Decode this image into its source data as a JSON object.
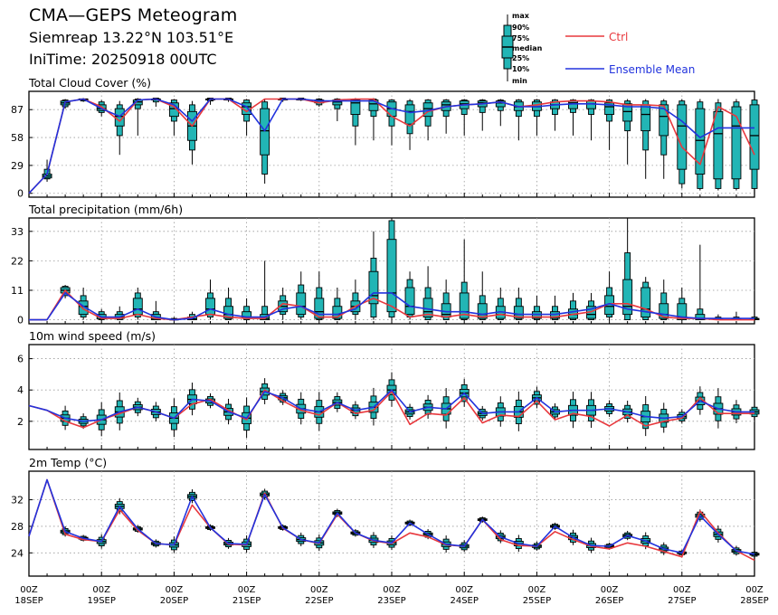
{
  "header": {
    "title": "CMA—GEPS Meteogram",
    "location": "Siemreap 13.22°N 103.51°E",
    "init_time": "IniTime: 20250918 00UTC"
  },
  "legend": {
    "box_labels": [
      "max",
      "90%",
      "75%",
      "median",
      "25%",
      "10%",
      "min"
    ],
    "ctrl_label": "Ctrl",
    "mean_label": "Ensemble Mean",
    "colors": {
      "ctrl": "#e8383d",
      "mean": "#2233dd",
      "box": "#22b5b5"
    }
  },
  "chart_data": [
    {
      "type": "box",
      "title": "Total Cloud Cover (%)",
      "ylim": [
        -4,
        106
      ],
      "yticks": [
        0,
        29,
        58,
        87
      ],
      "x": [
        0,
        1,
        2,
        3,
        4,
        5,
        6,
        7,
        8,
        9,
        10,
        11,
        12,
        13,
        14,
        15,
        16,
        17,
        18,
        19,
        20,
        21,
        22,
        23,
        24,
        25,
        26,
        27,
        28,
        29,
        30,
        31,
        32,
        33,
        34,
        35,
        36,
        37,
        38,
        39,
        40
      ],
      "ctrl": [
        0,
        20,
        95,
        98,
        90,
        75,
        97,
        98,
        90,
        70,
        98,
        98,
        85,
        98,
        98,
        98,
        94,
        97,
        98,
        98,
        80,
        70,
        85,
        90,
        92,
        93,
        95,
        90,
        92,
        95,
        96,
        96,
        95,
        92,
        92,
        91,
        48,
        30,
        90,
        80,
        40
      ],
      "mean": [
        0,
        20,
        95,
        98,
        88,
        80,
        97,
        98,
        92,
        75,
        98,
        98,
        90,
        65,
        98,
        98,
        96,
        96,
        96,
        96,
        88,
        84,
        86,
        90,
        92,
        93,
        95,
        90,
        90,
        92,
        93,
        93,
        92,
        90,
        90,
        88,
        75,
        58,
        68,
        68,
        68
      ],
      "boxes": [
        null,
        [
          12,
          15,
          16,
          18,
          20,
          25,
          35
        ],
        [
          88,
          90,
          92,
          94,
          96,
          97,
          98
        ],
        [
          95,
          96,
          97,
          98,
          98,
          98,
          99
        ],
        [
          80,
          84,
          86,
          88,
          92,
          95,
          97
        ],
        [
          40,
          60,
          70,
          80,
          88,
          92,
          96
        ],
        [
          60,
          88,
          92,
          95,
          97,
          98,
          99
        ],
        [
          90,
          95,
          97,
          98,
          98,
          99,
          99
        ],
        [
          60,
          75,
          80,
          88,
          94,
          97,
          98
        ],
        [
          30,
          45,
          55,
          70,
          85,
          92,
          96
        ],
        [
          92,
          96,
          97,
          98,
          98,
          99,
          99
        ],
        [
          95,
          97,
          97,
          98,
          98,
          99,
          99
        ],
        [
          60,
          75,
          82,
          90,
          94,
          97,
          98
        ],
        [
          10,
          20,
          40,
          65,
          88,
          95,
          98
        ],
        [
          95,
          97,
          97,
          98,
          98,
          99,
          99
        ],
        [
          96,
          97,
          97,
          98,
          98,
          99,
          99
        ],
        [
          90,
          92,
          94,
          96,
          97,
          98,
          99
        ],
        [
          75,
          88,
          92,
          95,
          97,
          98,
          99
        ],
        [
          50,
          70,
          82,
          94,
          97,
          98,
          99
        ],
        [
          55,
          80,
          86,
          93,
          97,
          98,
          99
        ],
        [
          50,
          70,
          80,
          88,
          95,
          97,
          98
        ],
        [
          45,
          62,
          72,
          85,
          92,
          96,
          98
        ],
        [
          55,
          70,
          80,
          88,
          94,
          97,
          98
        ],
        [
          62,
          80,
          86,
          92,
          95,
          97,
          98
        ],
        [
          60,
          82,
          88,
          93,
          96,
          97,
          98
        ],
        [
          65,
          84,
          90,
          94,
          96,
          97,
          98
        ],
        [
          70,
          86,
          90,
          94,
          96,
          97,
          98
        ],
        [
          55,
          80,
          86,
          90,
          95,
          97,
          98
        ],
        [
          60,
          80,
          86,
          90,
          95,
          97,
          98
        ],
        [
          65,
          82,
          88,
          92,
          95,
          97,
          98
        ],
        [
          60,
          84,
          88,
          94,
          96,
          97,
          98
        ],
        [
          55,
          82,
          88,
          93,
          96,
          97,
          98
        ],
        [
          45,
          75,
          82,
          90,
          94,
          97,
          98
        ],
        [
          30,
          65,
          75,
          85,
          93,
          96,
          98
        ],
        [
          15,
          45,
          65,
          82,
          92,
          96,
          98
        ],
        [
          15,
          40,
          60,
          80,
          92,
          96,
          98
        ],
        [
          5,
          10,
          25,
          70,
          92,
          96,
          98
        ],
        [
          3,
          5,
          20,
          55,
          88,
          95,
          98
        ],
        [
          3,
          5,
          15,
          62,
          85,
          94,
          98
        ],
        [
          3,
          5,
          15,
          70,
          90,
          95,
          98
        ],
        [
          3,
          5,
          25,
          60,
          92,
          97,
          98
        ]
      ]
    },
    {
      "type": "box",
      "title": "Total precipitation (mm/6h)",
      "ylim": [
        -1.5,
        38
      ],
      "yticks": [
        0,
        11,
        22,
        33
      ],
      "x": [
        0,
        1,
        2,
        3,
        4,
        5,
        6,
        7,
        8,
        9,
        10,
        11,
        12,
        13,
        14,
        15,
        16,
        17,
        18,
        19,
        20,
        21,
        22,
        23,
        24,
        25,
        26,
        27,
        28,
        29,
        30,
        31,
        32,
        33,
        34,
        35,
        36,
        37,
        38,
        39,
        40
      ],
      "ctrl": [
        0,
        0,
        11,
        4,
        0.5,
        0.5,
        2,
        0.5,
        0,
        1,
        2,
        1,
        0.5,
        0.5,
        6,
        5,
        1,
        1,
        5,
        8,
        5,
        1,
        2,
        1,
        2,
        1,
        2,
        1,
        1,
        1,
        2,
        3,
        6,
        6,
        4,
        1,
        0.5,
        0.5,
        0,
        0,
        0
      ],
      "mean": [
        0,
        0,
        10,
        5,
        1,
        1,
        4,
        1,
        0,
        0.5,
        4,
        2,
        1,
        1,
        4,
        5,
        2,
        2,
        4,
        10,
        10,
        5,
        4,
        3,
        3,
        2,
        3,
        2,
        2,
        2,
        3,
        4,
        6,
        4,
        3,
        2,
        1,
        0.5,
        0.5,
        0.5,
        0.5
      ],
      "boxes": [
        null,
        null,
        [
          8,
          9,
          10,
          11,
          12,
          12.5,
          13
        ],
        [
          0,
          1,
          2,
          5,
          7,
          9,
          12
        ],
        [
          0,
          0,
          0.3,
          1,
          2,
          3,
          4
        ],
        [
          0,
          0,
          0.5,
          1,
          2,
          3,
          5
        ],
        [
          0,
          1,
          2,
          4,
          8,
          10,
          12
        ],
        [
          0,
          0,
          0,
          0.5,
          2,
          3,
          7
        ],
        [
          0,
          0,
          0,
          0,
          0.3,
          0.5,
          1
        ],
        [
          0,
          0,
          0,
          0.3,
          1,
          2,
          3
        ],
        [
          0,
          1,
          2,
          4,
          8,
          10,
          15
        ],
        [
          0,
          0,
          0.5,
          2,
          5,
          8,
          12
        ],
        [
          0,
          0,
          0.5,
          1,
          3,
          5,
          8
        ],
        [
          0,
          0,
          0,
          0.5,
          2,
          5,
          22
        ],
        [
          0,
          2,
          3,
          5,
          7,
          9,
          12
        ],
        [
          0,
          1,
          2,
          5,
          10,
          13,
          18
        ],
        [
          0,
          0,
          0.5,
          3,
          8,
          12,
          18
        ],
        [
          0,
          0,
          0.5,
          2,
          5,
          8,
          12
        ],
        [
          0,
          2,
          3,
          5,
          7,
          10,
          15
        ],
        [
          0,
          1,
          6,
          9,
          18,
          23,
          33
        ],
        [
          0,
          1,
          3,
          10,
          30,
          37,
          38
        ],
        [
          0,
          1,
          2,
          5,
          12,
          15,
          18
        ],
        [
          0,
          0,
          1,
          3,
          8,
          12,
          20
        ],
        [
          0,
          0,
          1,
          2,
          6,
          10,
          15
        ],
        [
          0,
          0,
          0.5,
          3,
          10,
          14,
          30
        ],
        [
          0,
          0,
          0.5,
          2,
          6,
          9,
          18
        ],
        [
          0,
          0,
          0.5,
          2,
          5,
          8,
          12
        ],
        [
          0,
          0,
          0.5,
          2,
          5,
          8,
          12
        ],
        [
          0,
          0,
          0.5,
          1,
          3,
          5,
          9
        ],
        [
          0,
          0,
          0.5,
          1,
          3,
          5,
          9
        ],
        [
          0,
          0,
          0.5,
          2,
          4,
          7,
          10
        ],
        [
          0,
          0,
          0.5,
          2,
          5,
          7,
          10
        ],
        [
          0,
          1,
          2,
          5,
          9,
          12,
          18
        ],
        [
          0,
          0,
          2,
          5,
          15,
          25,
          38
        ],
        [
          0,
          0,
          1,
          4,
          12,
          14,
          16
        ],
        [
          0,
          0,
          0.5,
          2,
          6,
          10,
          15
        ],
        [
          0,
          0,
          0,
          1,
          6,
          8,
          12
        ],
        [
          0,
          0,
          0,
          0.5,
          2,
          4,
          28
        ],
        [
          0,
          0,
          0,
          0.3,
          0.5,
          1,
          2
        ],
        [
          0,
          0,
          0,
          0.3,
          0.5,
          1,
          3
        ],
        [
          0,
          0,
          0,
          0.3,
          0.5,
          1,
          3
        ]
      ]
    },
    {
      "type": "box",
      "title": "10m wind speed (m/s)",
      "ylim": [
        0.2,
        6.9
      ],
      "yticks": [
        2,
        4,
        6
      ],
      "x": [
        0,
        1,
        2,
        3,
        4,
        5,
        6,
        7,
        8,
        9,
        10,
        11,
        12,
        13,
        14,
        15,
        16,
        17,
        18,
        19,
        20,
        21,
        22,
        23,
        24,
        25,
        26,
        27,
        28,
        29,
        30,
        31,
        32,
        33,
        34,
        35,
        36,
        37,
        38,
        39,
        40
      ],
      "ctrl": [
        3,
        2.7,
        2.0,
        1.6,
        2.1,
        2.5,
        2.9,
        2.6,
        2.2,
        3.1,
        3.4,
        2.7,
        2.1,
        4.0,
        3.3,
        2.7,
        2.4,
        3.2,
        2.5,
        2.7,
        3.9,
        1.8,
        2.5,
        2.4,
        3.5,
        1.9,
        2.4,
        2.3,
        3.3,
        2.1,
        2.5,
        2.3,
        1.7,
        2.4,
        1.7,
        2.0,
        2.2,
        3.5,
        2.5,
        2.5,
        2.5
      ],
      "mean": [
        3,
        2.7,
        2.2,
        2.0,
        2.1,
        2.6,
        2.9,
        2.6,
        2.2,
        3.4,
        3.3,
        2.6,
        2.2,
        3.9,
        3.5,
        2.8,
        2.6,
        3.2,
        2.7,
        2.9,
        4.0,
        2.6,
        2.9,
        2.8,
        3.8,
        2.5,
        2.6,
        2.6,
        3.5,
        2.6,
        2.7,
        2.7,
        2.8,
        2.6,
        2.3,
        2.2,
        2.3,
        3.3,
        2.8,
        2.6,
        2.6
      ]
    },
    {
      "type": "box",
      "title": "2m Temp (°C)",
      "ylim": [
        20.5,
        36.3
      ],
      "yticks": [
        24,
        28,
        32
      ],
      "x": [
        0,
        1,
        2,
        3,
        4,
        5,
        6,
        7,
        8,
        9,
        10,
        11,
        12,
        13,
        14,
        15,
        16,
        17,
        18,
        19,
        20,
        21,
        22,
        23,
        24,
        25,
        26,
        27,
        28,
        29,
        30,
        31,
        32,
        33,
        34,
        35,
        36,
        37,
        38,
        39,
        40
      ],
      "ctrl": [
        26.5,
        35.0,
        26.8,
        26.0,
        25.7,
        30.5,
        27.4,
        25.4,
        25.2,
        31.2,
        27.8,
        25.3,
        25.2,
        33.0,
        27.7,
        26.0,
        25.4,
        29.8,
        27.0,
        25.8,
        25.4,
        27.0,
        26.4,
        25.2,
        25.0,
        29.0,
        26.0,
        25.1,
        25.0,
        27.2,
        26.0,
        25.0,
        24.6,
        25.5,
        25.0,
        24.2,
        23.4,
        30.3,
        27.0,
        24.3,
        22.9
      ],
      "mean": [
        26.5,
        35.0,
        27.2,
        26.2,
        25.7,
        31.0,
        27.6,
        25.4,
        25.2,
        32.5,
        27.8,
        25.4,
        25.3,
        32.8,
        27.8,
        26.0,
        25.5,
        30.0,
        27.0,
        25.9,
        25.5,
        28.5,
        26.8,
        25.3,
        25.0,
        29.0,
        26.4,
        25.4,
        25.0,
        28.0,
        26.3,
        25.1,
        25.0,
        26.6,
        25.8,
        24.6,
        24.0,
        29.6,
        26.8,
        24.3,
        23.8
      ]
    }
  ],
  "x_axis": {
    "labels": [
      {
        "x": 0,
        "line1": "00Z",
        "line2": "18SEP"
      },
      {
        "x": 4,
        "line1": "00Z",
        "line2": "19SEP"
      },
      {
        "x": 8,
        "line1": "00Z",
        "line2": "20SEP"
      },
      {
        "x": 12,
        "line1": "00Z",
        "line2": "21SEP"
      },
      {
        "x": 16,
        "line1": "00Z",
        "line2": "22SEP"
      },
      {
        "x": 20,
        "line1": "00Z",
        "line2": "23SEP"
      },
      {
        "x": 24,
        "line1": "00Z",
        "line2": "24SEP"
      },
      {
        "x": 28,
        "line1": "00Z",
        "line2": "25SEP"
      },
      {
        "x": 32,
        "line1": "00Z",
        "line2": "26SEP"
      },
      {
        "x": 36,
        "line1": "00Z",
        "line2": "27SEP"
      },
      {
        "x": 40,
        "line1": "00Z",
        "line2": "28SEP"
      }
    ]
  }
}
